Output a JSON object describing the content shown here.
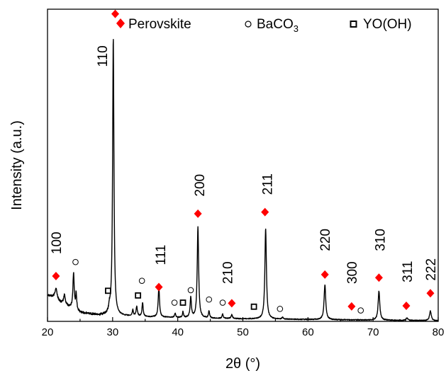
{
  "chart_data": {
    "type": "line",
    "title": "",
    "xlabel": "2θ (°)",
    "ylabel": "Intensity (a.u.)",
    "xlim": [
      20,
      80
    ],
    "ylim": [
      0,
      1
    ],
    "y_ticks_shown": false,
    "x_ticks": [
      20,
      30,
      40,
      50,
      60,
      70,
      80
    ],
    "x_tick_labels": [
      "20",
      "30",
      "40",
      "50",
      "60",
      "70",
      "80"
    ],
    "legend": {
      "placement": "top",
      "entries": [
        {
          "name": "Perovskite",
          "marker": "filled-diamond",
          "color": "#ff0000"
        },
        {
          "name": "BaCO3",
          "display": "BaCO",
          "subscript": "3",
          "marker": "open-circle",
          "color": "#000000"
        },
        {
          "name": "YO(OH)",
          "marker": "open-square",
          "color": "#000000"
        }
      ]
    },
    "series": [
      {
        "color": "#000000",
        "baseline": [
          [
            20,
            0.085
          ],
          [
            21,
            0.075
          ],
          [
            22,
            0.06
          ],
          [
            23,
            0.05
          ],
          [
            25,
            0.028
          ],
          [
            28,
            0.02
          ],
          [
            32,
            0.017
          ],
          [
            36,
            0.014
          ],
          [
            40,
            0.012
          ],
          [
            50,
            0.008
          ],
          [
            60,
            0.006
          ],
          [
            70,
            0.004
          ],
          [
            80,
            0.002
          ]
        ],
        "peaks": [
          {
            "x": 21.3,
            "height": 0.035,
            "width": 0.2
          },
          {
            "x": 22.6,
            "height": 0.03,
            "width": 0.15
          },
          {
            "x": 24.0,
            "height": 0.115,
            "width": 0.12
          },
          {
            "x": 24.4,
            "height": 0.05,
            "width": 0.1
          },
          {
            "x": 29.5,
            "height": 0.02,
            "width": 0.12
          },
          {
            "x": 30.1,
            "height": 0.89,
            "width": 0.12
          },
          {
            "x": 33.1,
            "height": 0.02,
            "width": 0.1
          },
          {
            "x": 33.7,
            "height": 0.03,
            "width": 0.12
          },
          {
            "x": 34.6,
            "height": 0.045,
            "width": 0.1
          },
          {
            "x": 37.1,
            "height": 0.095,
            "width": 0.12
          },
          {
            "x": 39.6,
            "height": 0.014,
            "width": 0.1
          },
          {
            "x": 40.8,
            "height": 0.018,
            "width": 0.1
          },
          {
            "x": 42.0,
            "height": 0.065,
            "width": 0.12
          },
          {
            "x": 43.1,
            "height": 0.29,
            "width": 0.13
          },
          {
            "x": 44.8,
            "height": 0.022,
            "width": 0.1
          },
          {
            "x": 46.9,
            "height": 0.014,
            "width": 0.1
          },
          {
            "x": 48.3,
            "height": 0.012,
            "width": 0.12
          },
          {
            "x": 53.5,
            "height": 0.29,
            "width": 0.14
          },
          {
            "x": 56.1,
            "height": 0.006,
            "width": 0.12
          },
          {
            "x": 62.6,
            "height": 0.112,
            "width": 0.15
          },
          {
            "x": 70.9,
            "height": 0.093,
            "width": 0.15
          },
          {
            "x": 75.2,
            "height": 0.008,
            "width": 0.15
          },
          {
            "x": 78.8,
            "height": 0.032,
            "width": 0.15
          }
        ]
      }
    ],
    "peak_labels": [
      {
        "text": "100",
        "x": 21.3,
        "y": 0.215,
        "rotation": -90
      },
      {
        "text": "110",
        "x": 28.4,
        "y": 0.815,
        "rotation": -90
      },
      {
        "text": "111",
        "x": 37.3,
        "y": 0.18,
        "rotation": -90
      },
      {
        "text": "200",
        "x": 43.3,
        "y": 0.4,
        "rotation": -90
      },
      {
        "text": "210",
        "x": 47.6,
        "y": 0.12,
        "rotation": -90
      },
      {
        "text": "211",
        "x": 53.7,
        "y": 0.405,
        "rotation": -90
      },
      {
        "text": "220",
        "x": 62.6,
        "y": 0.225,
        "rotation": -90
      },
      {
        "text": "300",
        "x": 66.7,
        "y": 0.12,
        "rotation": -90
      },
      {
        "text": "310",
        "x": 71.0,
        "y": 0.225,
        "rotation": -90
      },
      {
        "text": "311",
        "x": 75.2,
        "y": 0.125,
        "rotation": -90
      },
      {
        "text": "222",
        "x": 78.8,
        "y": 0.13,
        "rotation": -90
      }
    ],
    "phase_markers": [
      {
        "phase": "Perovskite",
        "x": 21.3,
        "y": 0.145
      },
      {
        "phase": "Perovskite",
        "x": 30.4,
        "y": 0.985
      },
      {
        "phase": "Perovskite",
        "x": 37.1,
        "y": 0.11
      },
      {
        "phase": "Perovskite",
        "x": 43.1,
        "y": 0.345
      },
      {
        "phase": "Perovskite",
        "x": 48.3,
        "y": 0.058
      },
      {
        "phase": "Perovskite",
        "x": 53.4,
        "y": 0.35
      },
      {
        "phase": "Perovskite",
        "x": 62.6,
        "y": 0.15
      },
      {
        "phase": "Perovskite",
        "x": 66.7,
        "y": 0.048
      },
      {
        "phase": "Perovskite",
        "x": 70.9,
        "y": 0.14
      },
      {
        "phase": "Perovskite",
        "x": 75.1,
        "y": 0.05
      },
      {
        "phase": "Perovskite",
        "x": 78.8,
        "y": 0.09
      },
      {
        "phase": "BaCO3",
        "x": 24.3,
        "y": 0.19
      },
      {
        "phase": "BaCO3",
        "x": 34.5,
        "y": 0.13
      },
      {
        "phase": "BaCO3",
        "x": 39.5,
        "y": 0.06
      },
      {
        "phase": "BaCO3",
        "x": 42.0,
        "y": 0.1
      },
      {
        "phase": "BaCO3",
        "x": 44.8,
        "y": 0.07
      },
      {
        "phase": "BaCO3",
        "x": 46.9,
        "y": 0.06
      },
      {
        "phase": "BaCO3",
        "x": 55.7,
        "y": 0.04
      },
      {
        "phase": "BaCO3",
        "x": 68.1,
        "y": 0.035
      },
      {
        "phase": "YO(OH)",
        "x": 29.3,
        "y": 0.098
      },
      {
        "phase": "YO(OH)",
        "x": 33.9,
        "y": 0.083
      },
      {
        "phase": "YO(OH)",
        "x": 40.8,
        "y": 0.06
      },
      {
        "phase": "YO(OH)",
        "x": 51.7,
        "y": 0.047
      }
    ]
  }
}
